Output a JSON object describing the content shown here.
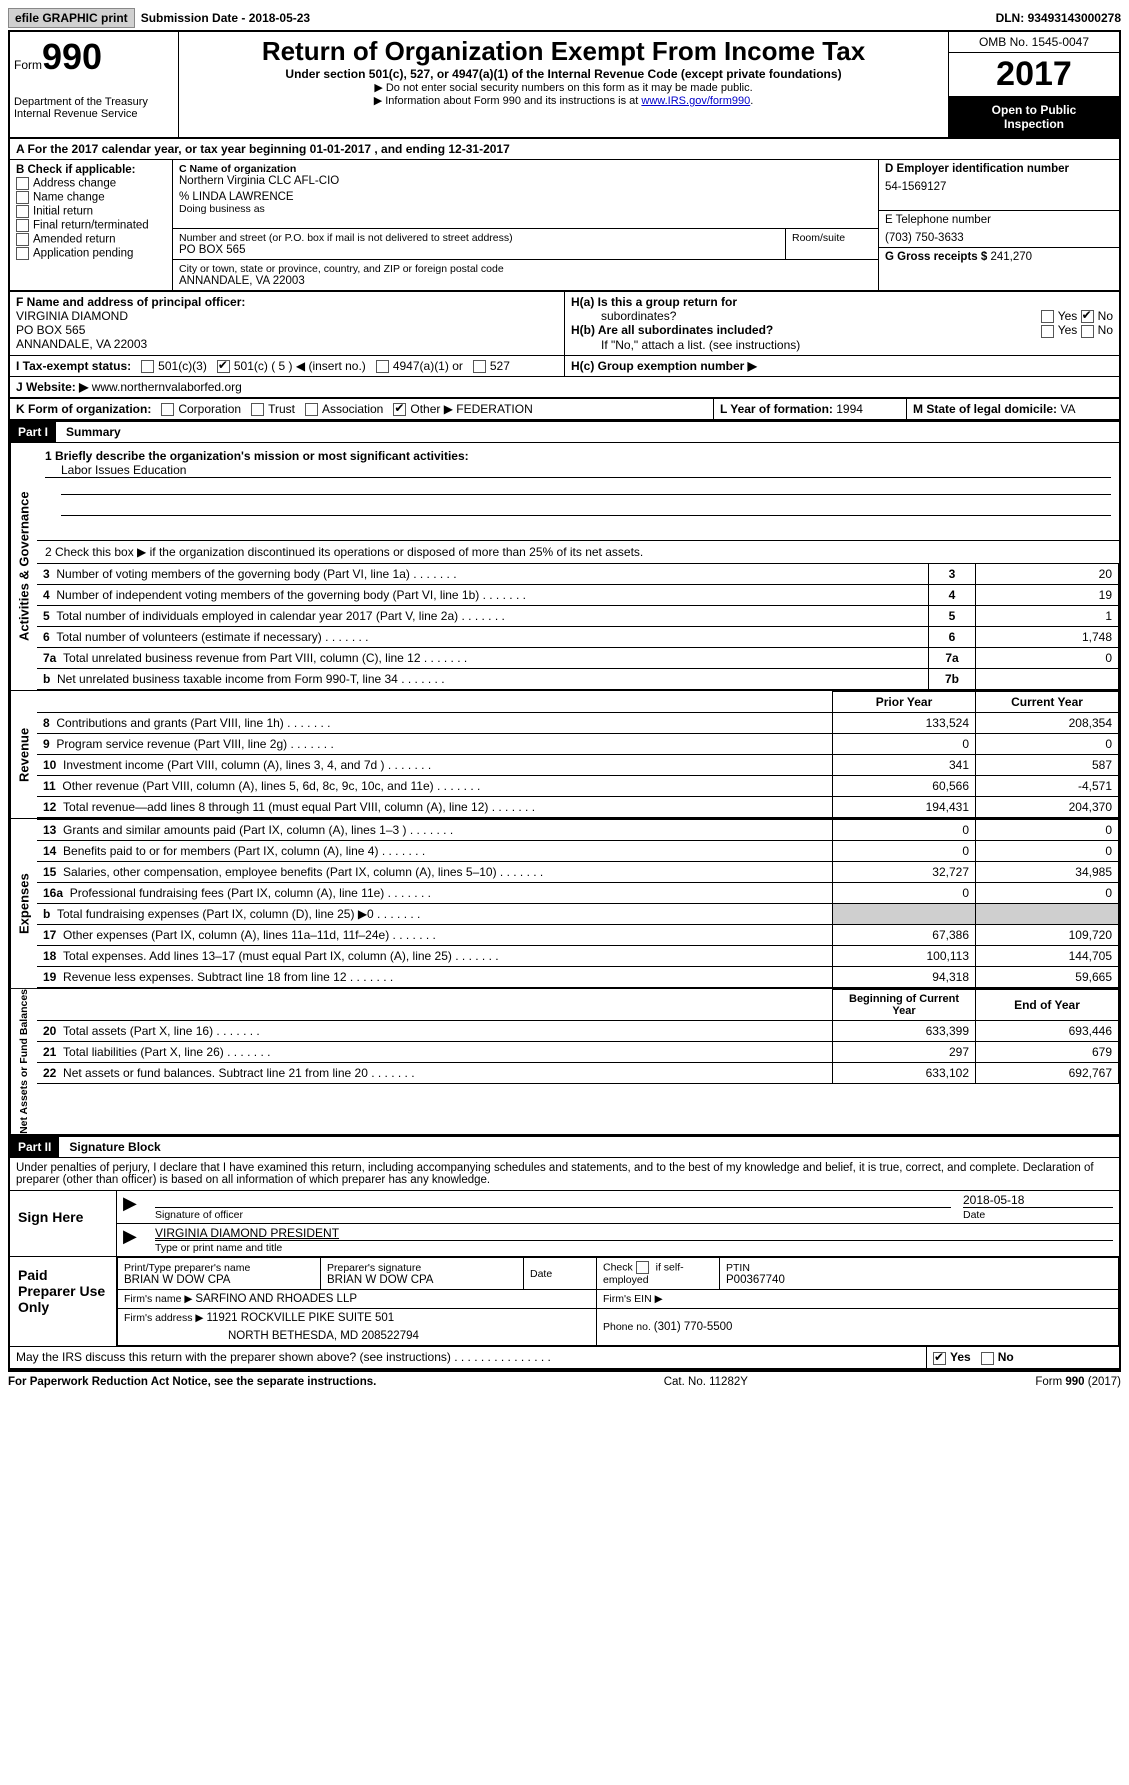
{
  "topbar": {
    "efile": "efile GRAPHIC print",
    "submission_label": "Submission Date - ",
    "submission_date": "2018-05-23",
    "dln_label": "DLN: ",
    "dln": "93493143000278"
  },
  "header": {
    "form_word": "Form",
    "form_no": "990",
    "dept1": "Department of the Treasury",
    "dept2": "Internal Revenue Service",
    "title": "Return of Organization Exempt From Income Tax",
    "subtitle": "Under section 501(c), 527, or 4947(a)(1) of the Internal Revenue Code (except private foundations)",
    "note1": "▶ Do not enter social security numbers on this form as it may be made public.",
    "note2_pre": "▶ Information about Form 990 and its instructions is at ",
    "note2_link": "www.IRS.gov/form990",
    "note2_post": ".",
    "omb": "OMB No. 1545-0047",
    "year": "2017",
    "public1": "Open to Public",
    "public2": "Inspection"
  },
  "rowA": "A  For the 2017 calendar year, or tax year beginning 01-01-2017   , and ending 12-31-2017",
  "colB": {
    "heading": "B Check if applicable:",
    "opts": [
      "Address change",
      "Name change",
      "Initial return",
      "Final return/terminated",
      "Amended return",
      "Application pending"
    ]
  },
  "colC": {
    "name_label": "C Name of organization",
    "name": "Northern Virginia CLC AFL-CIO",
    "care_of": "% LINDA LAWRENCE",
    "dba_label": "Doing business as",
    "street_label": "Number and street (or P.O. box if mail is not delivered to street address)",
    "room_label": "Room/suite",
    "street": "PO BOX 565",
    "city_label": "City or town, state or province, country, and ZIP or foreign postal code",
    "city": "ANNANDALE, VA  22003"
  },
  "colD": {
    "ein_label": "D Employer identification number",
    "ein": "54-1569127",
    "phone_label": "E Telephone number",
    "phone": "(703) 750-3633",
    "gross_label": "G Gross receipts $ ",
    "gross": "241,270"
  },
  "rowF": {
    "label": "F  Name and address of principal officer:",
    "name": "VIRGINIA DIAMOND",
    "addr1": "PO BOX 565",
    "addr2": "ANNANDALE, VA  22003"
  },
  "rowH": {
    "ha": "H(a)  Is this a group return for",
    "ha2": "subordinates?",
    "hb": "H(b)  Are all subordinates included?",
    "hbnote": "If \"No,\" attach a list. (see instructions)",
    "hc": "H(c)  Group exemption number ▶",
    "yes": "Yes",
    "no": "No"
  },
  "rowI": {
    "label": "I  Tax-exempt status:",
    "o501c3": "501(c)(3)",
    "o501c": "501(c) ( 5 ) ◀ (insert no.)",
    "o4947": "4947(a)(1) or",
    "o527": "527"
  },
  "rowJ": {
    "label": "J  Website: ▶ ",
    "site": "www.northernvalaborfed.org"
  },
  "rowK": {
    "label": "K Form of organization:",
    "corp": "Corporation",
    "trust": "Trust",
    "assoc": "Association",
    "other": "Other ▶ ",
    "other_val": "FEDERATION"
  },
  "rowL": {
    "year_label": "L Year of formation: ",
    "year": "1994",
    "state_label": "M State of legal domicile: ",
    "state": "VA"
  },
  "part1": {
    "bar": "Part I",
    "title": "Summary",
    "line1": "1  Briefly describe the organization's mission or most significant activities:",
    "mission": "Labor Issues Education",
    "line2": "2   Check this box ▶        if the organization discontinued its operations or disposed of more than 25% of its net assets.",
    "gov_label": "Activities & Governance",
    "rev_label": "Revenue",
    "exp_label": "Expenses",
    "net_label": "Net Assets or Fund Balances",
    "prior_hdr": "Prior Year",
    "curr_hdr": "Current Year",
    "begin_hdr": "Beginning of Current Year",
    "end_hdr": "End of Year",
    "rows_gov": [
      {
        "n": "3",
        "desc": "Number of voting members of the governing body (Part VI, line 1a)",
        "box": "3",
        "v": "20"
      },
      {
        "n": "4",
        "desc": "Number of independent voting members of the governing body (Part VI, line 1b)",
        "box": "4",
        "v": "19"
      },
      {
        "n": "5",
        "desc": "Total number of individuals employed in calendar year 2017 (Part V, line 2a)",
        "box": "5",
        "v": "1"
      },
      {
        "n": "6",
        "desc": "Total number of volunteers (estimate if necessary)",
        "box": "6",
        "v": "1,748"
      },
      {
        "n": "7a",
        "desc": "Total unrelated business revenue from Part VIII, column (C), line 12",
        "box": "7a",
        "v": "0"
      },
      {
        "n": "b",
        "desc": "Net unrelated business taxable income from Form 990-T, line 34",
        "box": "7b",
        "v": ""
      }
    ],
    "rows_rev": [
      {
        "n": "8",
        "desc": "Contributions and grants (Part VIII, line 1h)",
        "p": "133,524",
        "c": "208,354"
      },
      {
        "n": "9",
        "desc": "Program service revenue (Part VIII, line 2g)",
        "p": "0",
        "c": "0"
      },
      {
        "n": "10",
        "desc": "Investment income (Part VIII, column (A), lines 3, 4, and 7d )",
        "p": "341",
        "c": "587"
      },
      {
        "n": "11",
        "desc": "Other revenue (Part VIII, column (A), lines 5, 6d, 8c, 9c, 10c, and 11e)",
        "p": "60,566",
        "c": "-4,571"
      },
      {
        "n": "12",
        "desc": "Total revenue—add lines 8 through 11 (must equal Part VIII, column (A), line 12)",
        "p": "194,431",
        "c": "204,370"
      }
    ],
    "rows_exp": [
      {
        "n": "13",
        "desc": "Grants and similar amounts paid (Part IX, column (A), lines 1–3 )",
        "p": "0",
        "c": "0"
      },
      {
        "n": "14",
        "desc": "Benefits paid to or for members (Part IX, column (A), line 4)",
        "p": "0",
        "c": "0"
      },
      {
        "n": "15",
        "desc": "Salaries, other compensation, employee benefits (Part IX, column (A), lines 5–10)",
        "p": "32,727",
        "c": "34,985"
      },
      {
        "n": "16a",
        "desc": "Professional fundraising fees (Part IX, column (A), line 11e)",
        "p": "0",
        "c": "0"
      },
      {
        "n": "b",
        "desc": "Total fundraising expenses (Part IX, column (D), line 25)  ▶0",
        "p": "",
        "c": "",
        "shade": true
      },
      {
        "n": "17",
        "desc": "Other expenses (Part IX, column (A), lines 11a–11d, 11f–24e)",
        "p": "67,386",
        "c": "109,720"
      },
      {
        "n": "18",
        "desc": "Total expenses. Add lines 13–17 (must equal Part IX, column (A), line 25)",
        "p": "100,113",
        "c": "144,705"
      },
      {
        "n": "19",
        "desc": "Revenue less expenses. Subtract line 18 from line 12",
        "p": "94,318",
        "c": "59,665"
      }
    ],
    "rows_net": [
      {
        "n": "20",
        "desc": "Total assets (Part X, line 16)",
        "p": "633,399",
        "c": "693,446"
      },
      {
        "n": "21",
        "desc": "Total liabilities (Part X, line 26)",
        "p": "297",
        "c": "679"
      },
      {
        "n": "22",
        "desc": "Net assets or fund balances. Subtract line 21 from line 20",
        "p": "633,102",
        "c": "692,767"
      }
    ]
  },
  "part2": {
    "bar": "Part II",
    "title": "Signature Block",
    "perjury": "Under penalties of perjury, I declare that I have examined this return, including accompanying schedules and statements, and to the best of my knowledge and belief, it is true, correct, and complete. Declaration of preparer (other than officer) is based on all information of which preparer has any knowledge.",
    "signhere": "Sign Here",
    "sig_officer": "Signature of officer",
    "sig_date": "2018-05-18",
    "date_lbl": "Date",
    "officer_name": "VIRGINIA DIAMOND PRESIDENT",
    "type_name": "Type or print name and title",
    "paid": "Paid Preparer Use Only",
    "prep_name_lbl": "Print/Type preparer's name",
    "prep_name": "BRIAN W DOW CPA",
    "prep_sig_lbl": "Preparer's signature",
    "prep_sig": "BRIAN W DOW CPA",
    "prep_date_lbl": "Date",
    "self_emp": "Check         if self-employed",
    "ptin_lbl": "PTIN",
    "ptin": "P00367740",
    "firm_name_lbl": "Firm's name     ▶ ",
    "firm_name": "SARFINO AND RHOADES LLP",
    "firm_ein_lbl": "Firm's EIN ▶",
    "firm_addr_lbl": "Firm's address ▶ ",
    "firm_addr1": "11921 ROCKVILLE PIKE SUITE 501",
    "firm_addr2": "NORTH BETHESDA, MD  208522794",
    "firm_phone_lbl": "Phone no. ",
    "firm_phone": "(301) 770-5500",
    "discuss": "May the IRS discuss this return with the preparer shown above? (see instructions)",
    "yes": "Yes",
    "no": "No"
  },
  "footer": {
    "pra": "For Paperwork Reduction Act Notice, see the separate instructions.",
    "cat": "Cat. No. 11282Y",
    "formno": "Form 990 (2017)"
  }
}
